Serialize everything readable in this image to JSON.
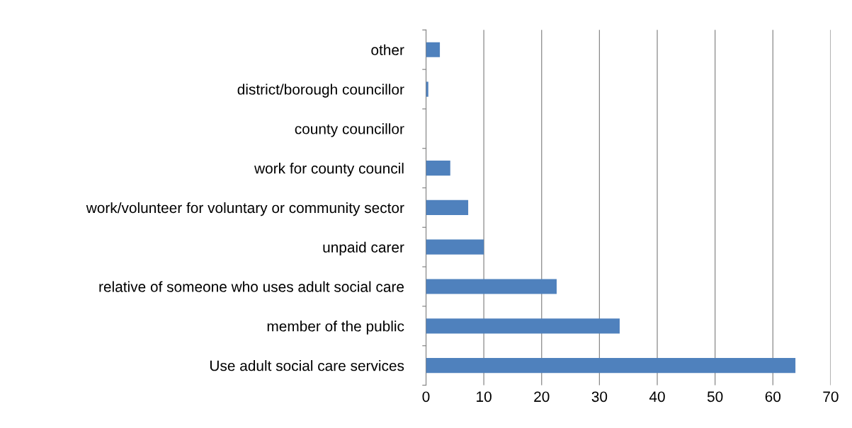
{
  "chart_data": {
    "type": "bar",
    "orientation": "horizontal",
    "categories": [
      "other",
      "district/borough councillor",
      "county councillor",
      "work for county council",
      "work/volunteer for voluntary or community sector",
      "unpaid carer",
      "relative of someone who uses adult social care",
      "member of the public",
      "Use adult social care services"
    ],
    "values": [
      2.4,
      0.4,
      null,
      4.2,
      7.3,
      10.0,
      22.6,
      33.5,
      63.9
    ],
    "color": "#4f81bd",
    "xlim": [
      0,
      70
    ],
    "xticks": [
      0,
      10,
      20,
      30,
      40,
      50,
      60,
      70
    ],
    "grid": "x",
    "legend": false
  }
}
